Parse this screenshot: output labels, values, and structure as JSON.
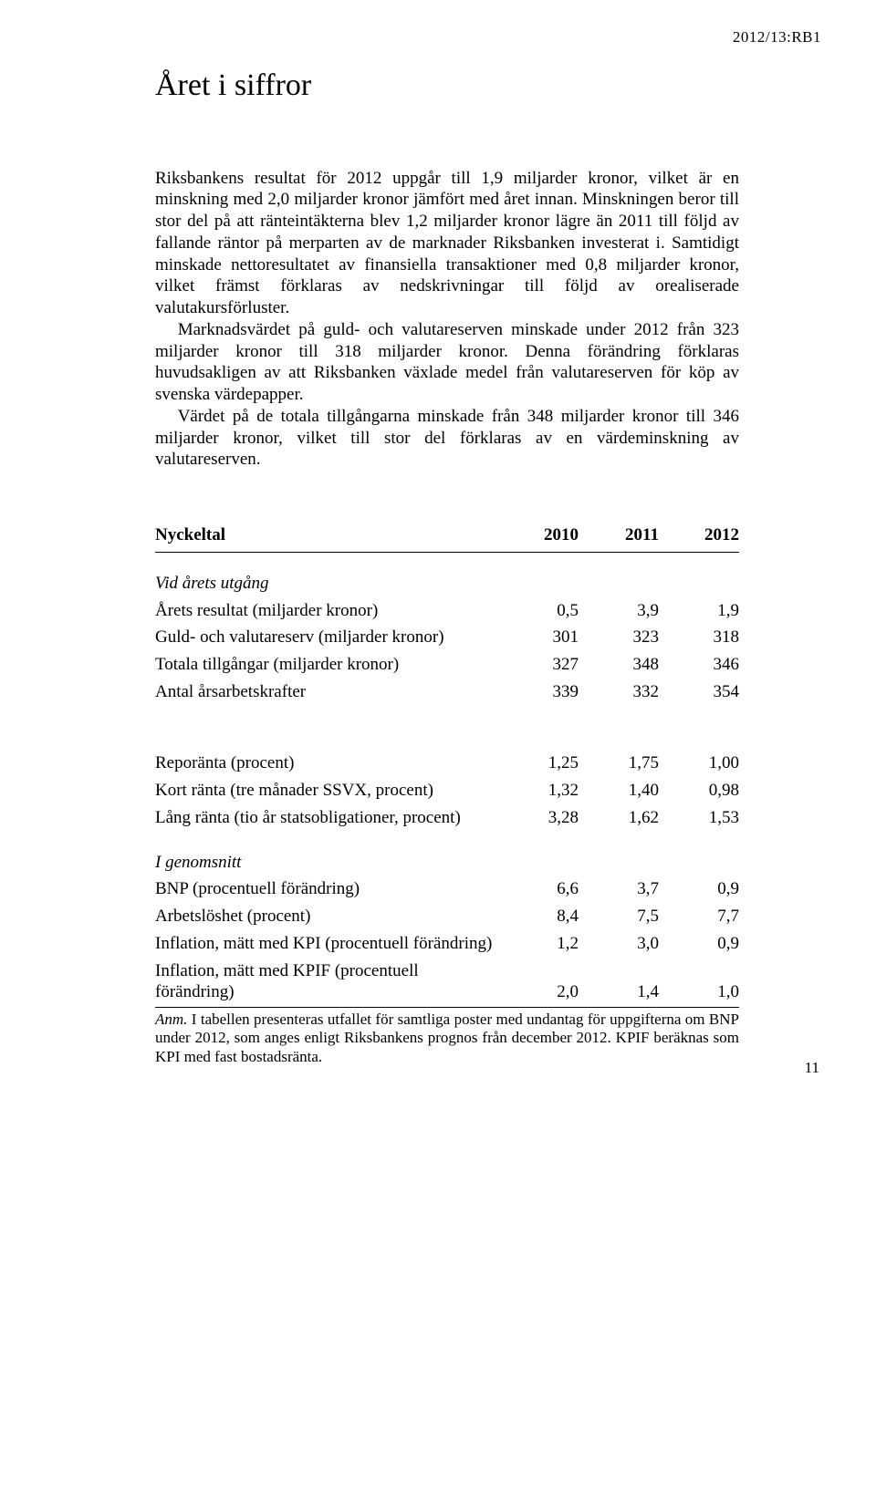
{
  "doc_id": "2012/13:RB1",
  "title": "Året i siffror",
  "paragraphs": {
    "p1": "Riksbankens resultat för 2012 uppgår till 1,9 miljarder kronor, vilket är en minskning med 2,0 miljarder kronor jämfört med året innan. Minskningen beror till stor del på att ränteintäkterna blev 1,2 miljarder kronor lägre än 2011 till följd av fallande räntor på merparten av de marknader Riksbanken investerat i. Samtidigt minskade nettoresultatet av finansiella transaktioner med 0,8 miljarder kronor, vilket främst förklaras av nedskrivningar till följd av orealiserade valutakursförluster.",
    "p2": "Marknadsvärdet på guld- och valutareserven minskade under 2012 från 323 miljarder kronor till 318 miljarder kronor. Denna förändring förklaras huvudsakligen av att Riksbanken växlade medel från valutareserven för köp av svenska värdepapper.",
    "p3": "Värdet på de totala tillgångarna minskade från 348 miljarder kronor till 346 miljarder kronor, vilket till stor del förklaras av en värdeminskning av valutareserven."
  },
  "table": {
    "header": {
      "label": "Nyckeltal",
      "y2010": "2010",
      "y2011": "2011",
      "y2012": "2012"
    },
    "section1": {
      "head": "Vid årets utgång",
      "rows": [
        {
          "label": "Årets resultat (miljarder kronor)",
          "y2010": "0,5",
          "y2011": "3,9",
          "y2012": "1,9"
        },
        {
          "label": "Guld- och valutareserv (miljarder kronor)",
          "y2010": "301",
          "y2011": "323",
          "y2012": "318"
        },
        {
          "label": "Totala tillgångar (miljarder kronor)",
          "y2010": "327",
          "y2011": "348",
          "y2012": "346"
        },
        {
          "label": "Antal årsarbetskrafter",
          "y2010": "339",
          "y2011": "332",
          "y2012": "354"
        }
      ]
    },
    "section2": {
      "rows": [
        {
          "label": "Reporänta (procent)",
          "y2010": "1,25",
          "y2011": "1,75",
          "y2012": "1,00"
        },
        {
          "label": "Kort ränta (tre månader SSVX, procent)",
          "y2010": "1,32",
          "y2011": "1,40",
          "y2012": "0,98"
        },
        {
          "label": "Lång ränta (tio år statsobligationer, procent)",
          "y2010": "3,28",
          "y2011": "1,62",
          "y2012": "1,53"
        }
      ]
    },
    "section3": {
      "head": "I genomsnitt",
      "rows": [
        {
          "label": "BNP (procentuell förändring)",
          "y2010": "6,6",
          "y2011": "3,7",
          "y2012": "0,9"
        },
        {
          "label": "Arbetslöshet (procent)",
          "y2010": "8,4",
          "y2011": "7,5",
          "y2012": "7,7"
        },
        {
          "label": "Inflation, mätt med KPI (procentuell förändring)",
          "y2010": "1,2",
          "y2011": "3,0",
          "y2012": "0,9"
        },
        {
          "label": "Inflation, mätt med KPIF (procentuell förändring)",
          "y2010": "2,0",
          "y2011": "1,4",
          "y2012": "1,0"
        }
      ]
    }
  },
  "note_label": "Anm.",
  "note_text": " I tabellen presenteras utfallet för samtliga poster med undantag för uppgifterna om BNP under 2012, som anges enligt Riksbankens prognos från december 2012. KPIF beräknas som KPI med fast bostadsränta.",
  "page_number": "11"
}
